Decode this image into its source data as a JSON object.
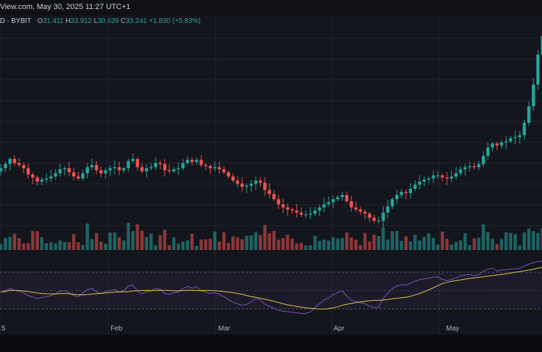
{
  "header": {
    "title": "View.com, May 30, 2025 11:27 UTC+1"
  },
  "ohlc": {
    "symbol": "D · BYBIT",
    "o_label": "O",
    "o": "31.411",
    "h_label": "H",
    "h": "33.912",
    "l_label": "L",
    "l": "30.639",
    "c_label": "C",
    "c": "33.241",
    "change": "+1.830 (+5.83%)"
  },
  "colors": {
    "up": "#26a69a",
    "down": "#ef5350",
    "rsi": "#7e57c2",
    "rsi_ma": "#e8c94a",
    "grid": "#232631"
  },
  "chart_data": {
    "type": "candlestick",
    "x_tick_labels": [
      "5",
      "Feb",
      "Mar",
      "Apr",
      "May"
    ],
    "close": [
      20.4,
      20.8,
      21.3,
      20.9,
      20.7,
      20.4,
      19.8,
      19.5,
      19.1,
      19.3,
      19.4,
      19.6,
      19.9,
      20.3,
      20.4,
      20.0,
      19.6,
      19.4,
      19.9,
      20.5,
      20.7,
      20.2,
      19.9,
      20.2,
      20.4,
      20.5,
      20.2,
      20.4,
      21.1,
      21.3,
      20.5,
      20.1,
      20.4,
      20.5,
      20.9,
      20.8,
      20.2,
      20.1,
      20.3,
      20.4,
      20.9,
      21.2,
      21.0,
      21.2,
      20.7,
      20.6,
      20.4,
      20.5,
      20.3,
      20.0,
      19.6,
      19.2,
      18.9,
      18.6,
      18.7,
      18.9,
      19.2,
      19.0,
      18.3,
      17.9,
      17.4,
      16.9,
      16.6,
      16.4,
      16.3,
      16.1,
      15.9,
      15.9,
      16.0,
      16.3,
      16.6,
      16.9,
      17.1,
      17.4,
      17.6,
      17.8,
      17.2,
      16.6,
      16.4,
      16.2,
      16.0,
      15.6,
      15.3,
      15.3,
      16.1,
      16.7,
      17.4,
      17.8,
      18.1,
      18.0,
      18.4,
      18.8,
      19.1,
      19.3,
      19.4,
      19.7,
      19.7,
      19.5,
      19.4,
      19.6,
      19.9,
      20.3,
      20.5,
      20.6,
      20.5,
      20.8,
      21.6,
      22.4,
      22.8,
      22.6,
      22.9,
      23.0,
      23.3,
      23.4,
      23.6,
      24.8,
      26.4,
      28.5,
      31.4,
      33.2
    ],
    "volume_unit": "relative",
    "rsi_range": [
      0,
      100
    ],
    "rsi_levels": [
      70,
      50,
      30
    ]
  }
}
